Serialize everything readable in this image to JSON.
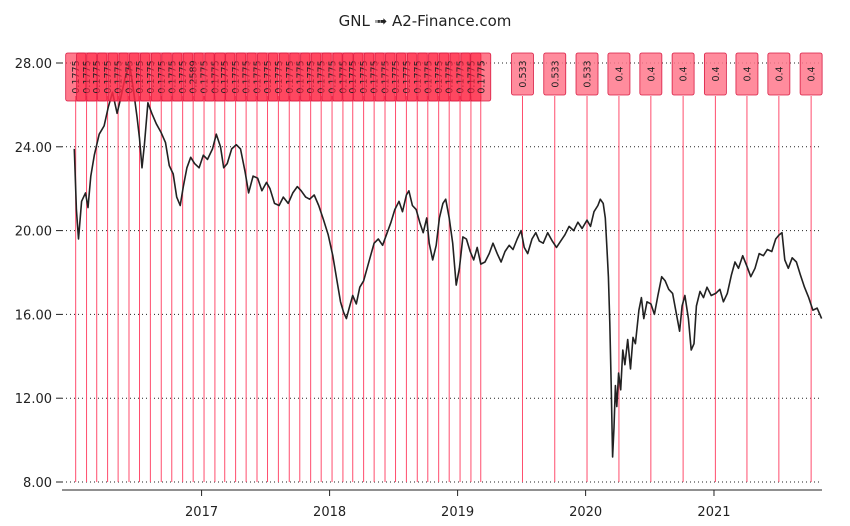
{
  "chart_data": {
    "type": "line",
    "title": "GNL ➟ A2-Finance.com",
    "ylim": [
      8,
      28.5
    ],
    "y_ticks": [
      "28.00",
      "24.00",
      "20.00",
      "16.00",
      "12.00",
      "8.00"
    ],
    "y_tick_values": [
      28,
      24,
      20,
      16,
      12,
      8
    ],
    "x_ticks": [
      "2017",
      "2018",
      "2019",
      "2020",
      "2021"
    ],
    "x_tick_values": [
      "2017-01-01",
      "2018-01-01",
      "2019-01-01",
      "2020-01-01",
      "2021-01-01"
    ],
    "x_range": [
      "2015-11-30",
      "2021-11-05"
    ],
    "grid": {
      "horizontal": "dotted",
      "vertical": false
    },
    "series": [
      {
        "color": "#222222",
        "points": [
          [
            "2016-01-04",
            23.9
          ],
          [
            "2016-01-10",
            21.0
          ],
          [
            "2016-01-16",
            19.6
          ],
          [
            "2016-01-25",
            21.4
          ],
          [
            "2016-02-05",
            21.8
          ],
          [
            "2016-02-12",
            21.1
          ],
          [
            "2016-02-20",
            22.6
          ],
          [
            "2016-03-01",
            23.6
          ],
          [
            "2016-03-15",
            24.6
          ],
          [
            "2016-03-29",
            25.0
          ],
          [
            "2016-04-10",
            25.9
          ],
          [
            "2016-04-22",
            26.6
          ],
          [
            "2016-05-05",
            25.6
          ],
          [
            "2016-05-15",
            26.3
          ],
          [
            "2016-05-28",
            27.3
          ],
          [
            "2016-06-10",
            27.9
          ],
          [
            "2016-06-20",
            26.8
          ],
          [
            "2016-07-01",
            25.4
          ],
          [
            "2016-07-08",
            24.4
          ],
          [
            "2016-07-15",
            23.0
          ],
          [
            "2016-07-22",
            24.1
          ],
          [
            "2016-08-01",
            26.1
          ],
          [
            "2016-08-12",
            25.6
          ],
          [
            "2016-08-25",
            25.1
          ],
          [
            "2016-09-07",
            24.7
          ],
          [
            "2016-09-20",
            24.2
          ],
          [
            "2016-10-01",
            23.1
          ],
          [
            "2016-10-12",
            22.7
          ],
          [
            "2016-10-22",
            21.6
          ],
          [
            "2016-11-01",
            21.2
          ],
          [
            "2016-11-10",
            22.1
          ],
          [
            "2016-11-20",
            23.0
          ],
          [
            "2016-12-01",
            23.5
          ],
          [
            "2016-12-12",
            23.2
          ],
          [
            "2016-12-25",
            23.0
          ],
          [
            "2017-01-06",
            23.6
          ],
          [
            "2017-01-18",
            23.4
          ],
          [
            "2017-02-01",
            23.9
          ],
          [
            "2017-02-12",
            24.6
          ],
          [
            "2017-02-24",
            24.0
          ],
          [
            "2017-03-05",
            23.0
          ],
          [
            "2017-03-15",
            23.2
          ],
          [
            "2017-03-28",
            23.9
          ],
          [
            "2017-04-10",
            24.1
          ],
          [
            "2017-04-22",
            23.9
          ],
          [
            "2017-05-05",
            22.8
          ],
          [
            "2017-05-15",
            21.8
          ],
          [
            "2017-05-28",
            22.6
          ],
          [
            "2017-06-10",
            22.5
          ],
          [
            "2017-06-22",
            21.9
          ],
          [
            "2017-07-05",
            22.3
          ],
          [
            "2017-07-15",
            22.0
          ],
          [
            "2017-07-28",
            21.3
          ],
          [
            "2017-08-10",
            21.2
          ],
          [
            "2017-08-22",
            21.6
          ],
          [
            "2017-09-05",
            21.3
          ],
          [
            "2017-09-18",
            21.8
          ],
          [
            "2017-10-01",
            22.1
          ],
          [
            "2017-10-12",
            21.9
          ],
          [
            "2017-10-25",
            21.6
          ],
          [
            "2017-11-05",
            21.5
          ],
          [
            "2017-11-18",
            21.7
          ],
          [
            "2017-12-01",
            21.2
          ],
          [
            "2017-12-15",
            20.5
          ],
          [
            "2017-12-28",
            19.8
          ],
          [
            "2018-01-10",
            18.8
          ],
          [
            "2018-01-22",
            17.6
          ],
          [
            "2018-02-01",
            16.6
          ],
          [
            "2018-02-10",
            16.1
          ],
          [
            "2018-02-18",
            15.8
          ],
          [
            "2018-02-26",
            16.3
          ],
          [
            "2018-03-08",
            16.9
          ],
          [
            "2018-03-18",
            16.5
          ],
          [
            "2018-03-28",
            17.3
          ],
          [
            "2018-04-08",
            17.6
          ],
          [
            "2018-04-18",
            18.2
          ],
          [
            "2018-04-28",
            18.8
          ],
          [
            "2018-05-08",
            19.4
          ],
          [
            "2018-05-20",
            19.6
          ],
          [
            "2018-06-01",
            19.3
          ],
          [
            "2018-06-12",
            19.8
          ],
          [
            "2018-06-25",
            20.4
          ],
          [
            "2018-07-06",
            21.0
          ],
          [
            "2018-07-18",
            21.4
          ],
          [
            "2018-07-28",
            20.9
          ],
          [
            "2018-08-08",
            21.7
          ],
          [
            "2018-08-15",
            21.9
          ],
          [
            "2018-08-25",
            21.2
          ],
          [
            "2018-09-05",
            21.0
          ],
          [
            "2018-09-15",
            20.4
          ],
          [
            "2018-09-25",
            19.9
          ],
          [
            "2018-10-05",
            20.6
          ],
          [
            "2018-10-12",
            19.4
          ],
          [
            "2018-10-22",
            18.6
          ],
          [
            "2018-11-01",
            19.3
          ],
          [
            "2018-11-10",
            20.6
          ],
          [
            "2018-11-20",
            21.3
          ],
          [
            "2018-11-28",
            21.5
          ],
          [
            "2018-12-08",
            20.6
          ],
          [
            "2018-12-18",
            19.4
          ],
          [
            "2018-12-28",
            17.4
          ],
          [
            "2019-01-06",
            18.2
          ],
          [
            "2019-01-16",
            19.7
          ],
          [
            "2019-01-26",
            19.6
          ],
          [
            "2019-02-06",
            19.0
          ],
          [
            "2019-02-16",
            18.6
          ],
          [
            "2019-02-26",
            19.2
          ],
          [
            "2019-03-08",
            18.4
          ],
          [
            "2019-03-20",
            18.5
          ],
          [
            "2019-04-01",
            18.9
          ],
          [
            "2019-04-12",
            19.4
          ],
          [
            "2019-04-24",
            18.9
          ],
          [
            "2019-05-05",
            18.5
          ],
          [
            "2019-05-16",
            19.0
          ],
          [
            "2019-05-28",
            19.3
          ],
          [
            "2019-06-08",
            19.1
          ],
          [
            "2019-06-20",
            19.6
          ],
          [
            "2019-07-01",
            20.0
          ],
          [
            "2019-07-10",
            19.2
          ],
          [
            "2019-07-20",
            18.9
          ],
          [
            "2019-08-01",
            19.6
          ],
          [
            "2019-08-12",
            19.9
          ],
          [
            "2019-08-22",
            19.5
          ],
          [
            "2019-09-02",
            19.4
          ],
          [
            "2019-09-15",
            19.9
          ],
          [
            "2019-09-28",
            19.5
          ],
          [
            "2019-10-10",
            19.2
          ],
          [
            "2019-10-22",
            19.5
          ],
          [
            "2019-11-03",
            19.8
          ],
          [
            "2019-11-15",
            20.2
          ],
          [
            "2019-11-28",
            20.0
          ],
          [
            "2019-12-10",
            20.4
          ],
          [
            "2019-12-22",
            20.1
          ],
          [
            "2020-01-05",
            20.5
          ],
          [
            "2020-01-15",
            20.2
          ],
          [
            "2020-01-25",
            20.9
          ],
          [
            "2020-02-05",
            21.2
          ],
          [
            "2020-02-12",
            21.5
          ],
          [
            "2020-02-20",
            21.3
          ],
          [
            "2020-02-26",
            20.6
          ],
          [
            "2020-03-02",
            19.1
          ],
          [
            "2020-03-06",
            17.8
          ],
          [
            "2020-03-10",
            15.6
          ],
          [
            "2020-03-14",
            12.6
          ],
          [
            "2020-03-18",
            9.2
          ],
          [
            "2020-03-22",
            10.6
          ],
          [
            "2020-03-26",
            12.6
          ],
          [
            "2020-03-30",
            11.6
          ],
          [
            "2020-04-04",
            13.2
          ],
          [
            "2020-04-10",
            12.4
          ],
          [
            "2020-04-16",
            14.3
          ],
          [
            "2020-04-22",
            13.6
          ],
          [
            "2020-04-30",
            14.8
          ],
          [
            "2020-05-08",
            13.4
          ],
          [
            "2020-05-15",
            14.9
          ],
          [
            "2020-05-22",
            14.6
          ],
          [
            "2020-06-01",
            16.2
          ],
          [
            "2020-06-08",
            16.8
          ],
          [
            "2020-06-15",
            15.8
          ],
          [
            "2020-06-24",
            16.6
          ],
          [
            "2020-07-05",
            16.5
          ],
          [
            "2020-07-15",
            16.0
          ],
          [
            "2020-07-25",
            16.9
          ],
          [
            "2020-08-05",
            17.8
          ],
          [
            "2020-08-15",
            17.6
          ],
          [
            "2020-08-25",
            17.2
          ],
          [
            "2020-09-05",
            17.0
          ],
          [
            "2020-09-15",
            16.1
          ],
          [
            "2020-09-25",
            15.2
          ],
          [
            "2020-10-02",
            16.4
          ],
          [
            "2020-10-10",
            16.9
          ],
          [
            "2020-10-20",
            15.8
          ],
          [
            "2020-10-28",
            14.3
          ],
          [
            "2020-11-05",
            14.6
          ],
          [
            "2020-11-12",
            16.4
          ],
          [
            "2020-11-22",
            17.1
          ],
          [
            "2020-12-02",
            16.8
          ],
          [
            "2020-12-12",
            17.3
          ],
          [
            "2020-12-24",
            16.9
          ],
          [
            "2021-01-06",
            17.0
          ],
          [
            "2021-01-18",
            17.2
          ],
          [
            "2021-01-28",
            16.6
          ],
          [
            "2021-02-08",
            17.0
          ],
          [
            "2021-02-20",
            17.9
          ],
          [
            "2021-03-02",
            18.5
          ],
          [
            "2021-03-12",
            18.2
          ],
          [
            "2021-03-24",
            18.8
          ],
          [
            "2021-04-05",
            18.3
          ],
          [
            "2021-04-16",
            17.8
          ],
          [
            "2021-04-28",
            18.2
          ],
          [
            "2021-05-10",
            18.9
          ],
          [
            "2021-05-22",
            18.8
          ],
          [
            "2021-06-02",
            19.1
          ],
          [
            "2021-06-15",
            19.0
          ],
          [
            "2021-06-26",
            19.6
          ],
          [
            "2021-07-06",
            19.8
          ],
          [
            "2021-07-14",
            19.9
          ],
          [
            "2021-07-22",
            18.6
          ],
          [
            "2021-08-01",
            18.2
          ],
          [
            "2021-08-12",
            18.7
          ],
          [
            "2021-08-24",
            18.5
          ],
          [
            "2021-09-04",
            17.9
          ],
          [
            "2021-09-16",
            17.3
          ],
          [
            "2021-09-28",
            16.8
          ],
          [
            "2021-10-10",
            16.2
          ],
          [
            "2021-10-22",
            16.3
          ],
          [
            "2021-10-30",
            16.0
          ],
          [
            "2021-11-04",
            15.8
          ]
        ]
      }
    ],
    "dividends": {
      "color": "#ff4d6d",
      "events": [
        [
          "2016-01-08",
          "0.1775"
        ],
        [
          "2016-02-08",
          "0.1775"
        ],
        [
          "2016-03-08",
          "0.1775"
        ],
        [
          "2016-04-08",
          "0.1775"
        ],
        [
          "2016-05-08",
          "0.1775"
        ],
        [
          "2016-06-08",
          "0.1775"
        ],
        [
          "2016-07-08",
          "0.1775"
        ],
        [
          "2016-08-08",
          "0.1775"
        ],
        [
          "2016-09-08",
          "0.1775"
        ],
        [
          "2016-10-08",
          "0.1775"
        ],
        [
          "2016-11-08",
          "0.1775"
        ],
        [
          "2016-12-08",
          "0.2589"
        ],
        [
          "2017-01-08",
          "0.1775"
        ],
        [
          "2017-02-08",
          "0.1775"
        ],
        [
          "2017-03-08",
          "0.1775"
        ],
        [
          "2017-04-08",
          "0.1775"
        ],
        [
          "2017-05-08",
          "0.1775"
        ],
        [
          "2017-06-08",
          "0.1775"
        ],
        [
          "2017-07-08",
          "0.1775"
        ],
        [
          "2017-08-08",
          "0.1775"
        ],
        [
          "2017-09-08",
          "0.1775"
        ],
        [
          "2017-10-08",
          "0.1775"
        ],
        [
          "2017-11-08",
          "0.1775"
        ],
        [
          "2017-12-08",
          "0.1775"
        ],
        [
          "2018-01-08",
          "0.1775"
        ],
        [
          "2018-02-08",
          "0.1775"
        ],
        [
          "2018-03-08",
          "0.1775"
        ],
        [
          "2018-04-08",
          "0.1775"
        ],
        [
          "2018-05-08",
          "0.1775"
        ],
        [
          "2018-06-08",
          "0.1775"
        ],
        [
          "2018-07-08",
          "0.1775"
        ],
        [
          "2018-08-08",
          "0.1775"
        ],
        [
          "2018-09-08",
          "0.1775"
        ],
        [
          "2018-10-08",
          "0.1775"
        ],
        [
          "2018-11-08",
          "0.1775"
        ],
        [
          "2018-12-08",
          "0.1775"
        ],
        [
          "2019-01-08",
          "0.1775"
        ],
        [
          "2019-02-08",
          "0.1775"
        ],
        [
          "2019-03-08",
          "0.1775"
        ],
        [
          "2019-07-05",
          "0.533"
        ],
        [
          "2019-10-05",
          "0.533"
        ],
        [
          "2020-01-05",
          "0.533"
        ],
        [
          "2020-04-05",
          "0.4"
        ],
        [
          "2020-07-05",
          "0.4"
        ],
        [
          "2020-10-05",
          "0.4"
        ],
        [
          "2021-01-05",
          "0.4"
        ],
        [
          "2021-04-05",
          "0.4"
        ],
        [
          "2021-07-05",
          "0.4"
        ],
        [
          "2021-10-05",
          "0.4"
        ]
      ]
    }
  }
}
